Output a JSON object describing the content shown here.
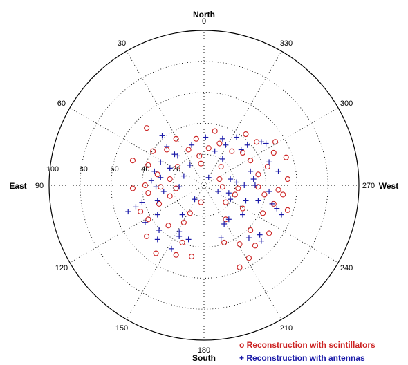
{
  "chart_data": {
    "type": "scatter",
    "projection": "polar",
    "compass": {
      "north": "North",
      "south": "South",
      "east": "East",
      "west": "West"
    },
    "angle_ticks": [
      {
        "az": 0,
        "label": "0"
      },
      {
        "az": 30,
        "label": "30"
      },
      {
        "az": 60,
        "label": "60"
      },
      {
        "az": 90,
        "label": "90"
      },
      {
        "az": 120,
        "label": "120"
      },
      {
        "az": 150,
        "label": "150"
      },
      {
        "az": 180,
        "label": "180"
      },
      {
        "az": 210,
        "label": "210"
      },
      {
        "az": 240,
        "label": "240"
      },
      {
        "az": 270,
        "label": "270"
      },
      {
        "az": 300,
        "label": "300"
      },
      {
        "az": 330,
        "label": "330"
      }
    ],
    "radial_ticks": [
      {
        "r": 20,
        "label": "20"
      },
      {
        "r": 40,
        "label": "40"
      },
      {
        "r": 60,
        "label": "60"
      },
      {
        "r": 80,
        "label": "80"
      },
      {
        "r": 100,
        "label": "100"
      }
    ],
    "rlim": [
      0,
      100
    ],
    "grid": true,
    "legend": {
      "placement": "bottom-right"
    },
    "colors": {
      "scintillators": "#cc2222",
      "antennas": "#1a1aa8",
      "axis": "#000000"
    },
    "series": [
      {
        "name": "Reconstruction with scintillators",
        "legend_label": "o Reconstruction with scintillators",
        "marker": "circle",
        "points": [
          {
            "x": -37,
            "y": 37
          },
          {
            "x": -18,
            "y": 30
          },
          {
            "x": -5,
            "y": 30
          },
          {
            "x": 7,
            "y": 35
          },
          {
            "x": 10,
            "y": 27
          },
          {
            "x": 27,
            "y": 33
          },
          {
            "x": 34,
            "y": 28
          },
          {
            "x": 46,
            "y": 28
          },
          {
            "x": -33,
            "y": 22
          },
          {
            "x": -24,
            "y": 23
          },
          {
            "x": -10,
            "y": 23
          },
          {
            "x": -3,
            "y": 19
          },
          {
            "x": 3,
            "y": 24
          },
          {
            "x": 18,
            "y": 22
          },
          {
            "x": 25,
            "y": 21
          },
          {
            "x": 30,
            "y": 16
          },
          {
            "x": 45,
            "y": 21
          },
          {
            "x": 53,
            "y": 18
          },
          {
            "x": -46,
            "y": 16
          },
          {
            "x": -36,
            "y": 13
          },
          {
            "x": -17,
            "y": 12
          },
          {
            "x": -2,
            "y": 14
          },
          {
            "x": 11,
            "y": 12
          },
          {
            "x": 41,
            "y": 12
          },
          {
            "x": -30,
            "y": 7
          },
          {
            "x": -22,
            "y": 4
          },
          {
            "x": 10,
            "y": 4
          },
          {
            "x": 35,
            "y": 7
          },
          {
            "x": 54,
            "y": 4
          },
          {
            "x": -46,
            "y": -2
          },
          {
            "x": -38,
            "y": 0
          },
          {
            "x": -28,
            "y": -1
          },
          {
            "x": -18,
            "y": -2
          },
          {
            "x": 12,
            "y": -1
          },
          {
            "x": 22,
            "y": -2
          },
          {
            "x": 35,
            "y": -1
          },
          {
            "x": 48,
            "y": -3
          },
          {
            "x": -36,
            "y": -5
          },
          {
            "x": -22,
            "y": -7
          },
          {
            "x": 20,
            "y": -6
          },
          {
            "x": 39,
            "y": -6
          },
          {
            "x": 51,
            "y": -6
          },
          {
            "x": -29,
            "y": -12
          },
          {
            "x": -2,
            "y": -11
          },
          {
            "x": 14,
            "y": -11
          },
          {
            "x": 25,
            "y": -15
          },
          {
            "x": 45,
            "y": -12
          },
          {
            "x": -41,
            "y": -17
          },
          {
            "x": -9,
            "y": -18
          },
          {
            "x": 38,
            "y": -18
          },
          {
            "x": 54,
            "y": -16
          },
          {
            "x": -36,
            "y": -22
          },
          {
            "x": -23,
            "y": -26
          },
          {
            "x": -13,
            "y": -24
          },
          {
            "x": 14,
            "y": -22
          },
          {
            "x": 30,
            "y": -29
          },
          {
            "x": 42,
            "y": -31
          },
          {
            "x": -37,
            "y": -33
          },
          {
            "x": -14,
            "y": -37
          },
          {
            "x": 13,
            "y": -37
          },
          {
            "x": 23,
            "y": -38
          },
          {
            "x": 33,
            "y": -39
          },
          {
            "x": -31,
            "y": -44
          },
          {
            "x": -18,
            "y": -45
          },
          {
            "x": -8,
            "y": -46
          },
          {
            "x": 29,
            "y": -47
          },
          {
            "x": 23,
            "y": -53
          }
        ]
      },
      {
        "name": "Reconstruction with antennas",
        "legend_label": "+ Reconstruction with antennas",
        "marker": "plus",
        "points": [
          {
            "x": -27,
            "y": 32
          },
          {
            "x": -24,
            "y": 25
          },
          {
            "x": -8,
            "y": 26
          },
          {
            "x": 1,
            "y": 31
          },
          {
            "x": 12,
            "y": 30
          },
          {
            "x": 21,
            "y": 31
          },
          {
            "x": 28,
            "y": 26
          },
          {
            "x": 37,
            "y": 28
          },
          {
            "x": 40,
            "y": 27
          },
          {
            "x": -19,
            "y": 20
          },
          {
            "x": -9,
            "y": 13
          },
          {
            "x": 7,
            "y": 22
          },
          {
            "x": 14,
            "y": 26
          },
          {
            "x": 24,
            "y": 23
          },
          {
            "x": -28,
            "y": 15
          },
          {
            "x": -17,
            "y": 19
          },
          {
            "x": 12,
            "y": 17
          },
          {
            "x": 42,
            "y": 15
          },
          {
            "x": -32,
            "y": 9
          },
          {
            "x": -22,
            "y": 11
          },
          {
            "x": 30,
            "y": 9
          },
          {
            "x": 48,
            "y": 9
          },
          {
            "x": -28,
            "y": 5
          },
          {
            "x": -13,
            "y": 6
          },
          {
            "x": 3,
            "y": 5
          },
          {
            "x": 17,
            "y": 4
          },
          {
            "x": 21,
            "y": 2
          },
          {
            "x": 32,
            "y": 4
          },
          {
            "x": -34,
            "y": 3
          },
          {
            "x": -31,
            "y": -1
          },
          {
            "x": -16,
            "y": -1
          },
          {
            "x": 26,
            "y": 0
          },
          {
            "x": 33,
            "y": 0
          },
          {
            "x": 42,
            "y": -4
          },
          {
            "x": -26,
            "y": -4
          },
          {
            "x": 9,
            "y": -4
          },
          {
            "x": 16,
            "y": -5
          },
          {
            "x": -30,
            "y": -10
          },
          {
            "x": -6,
            "y": -9
          },
          {
            "x": 17,
            "y": -9
          },
          {
            "x": 27,
            "y": -10
          },
          {
            "x": 35,
            "y": -10
          },
          {
            "x": 44,
            "y": -12
          },
          {
            "x": -40,
            "y": -11
          },
          {
            "x": -44,
            "y": -14
          },
          {
            "x": 47,
            "y": -15
          },
          {
            "x": -49,
            "y": -17
          },
          {
            "x": -30,
            "y": -19
          },
          {
            "x": -14,
            "y": -19
          },
          {
            "x": 25,
            "y": -19
          },
          {
            "x": 50,
            "y": -19
          },
          {
            "x": -38,
            "y": -24
          },
          {
            "x": -29,
            "y": -29
          },
          {
            "x": -16,
            "y": -30
          },
          {
            "x": 13,
            "y": -25
          },
          {
            "x": 16,
            "y": -22
          },
          {
            "x": 36,
            "y": -32
          },
          {
            "x": -30,
            "y": -35
          },
          {
            "x": -16,
            "y": -33
          },
          {
            "x": -10,
            "y": -35
          },
          {
            "x": 11,
            "y": -34
          },
          {
            "x": 29,
            "y": -34
          },
          {
            "x": 37,
            "y": -36
          },
          {
            "x": -21,
            "y": -41
          }
        ]
      }
    ]
  }
}
